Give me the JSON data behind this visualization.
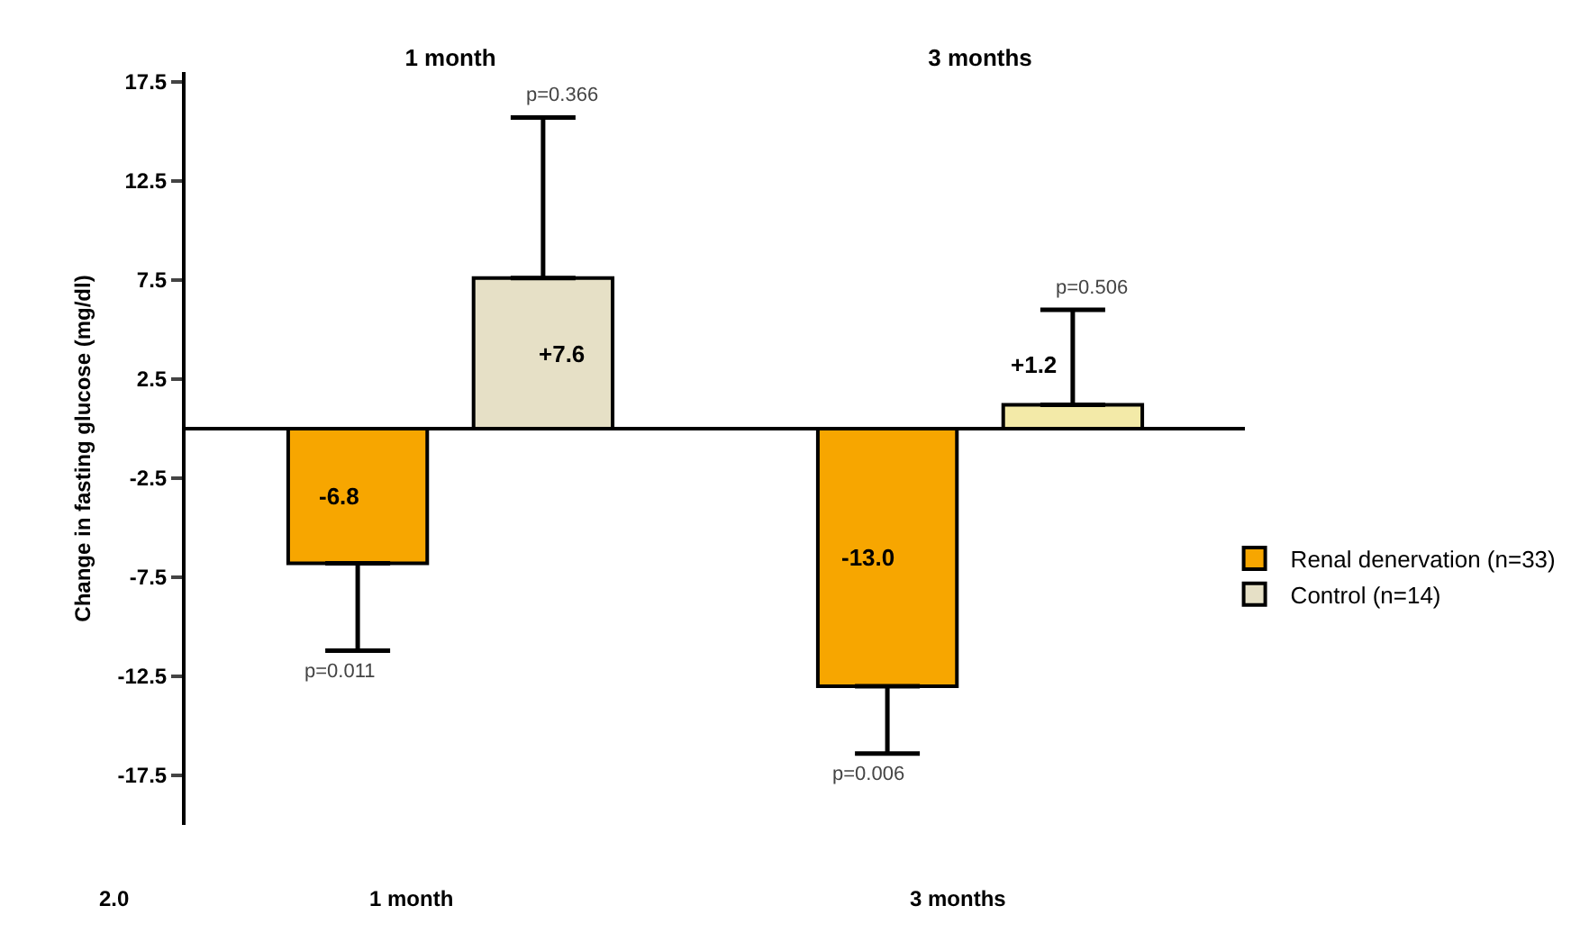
{
  "chart_data": [
    {
      "type": "bar",
      "ylabel": "Change in fasting glucose (mg/dl)",
      "categories": [
        "1 month",
        "3 months"
      ],
      "series": [
        {
          "name": "Renal denervation (n=33)",
          "color": "#f7a600",
          "values": [
            -6.8,
            -13.0
          ],
          "value_labels": [
            "-6.8",
            "-13.0"
          ],
          "errors": [
            [
              -11.2,
              -6.8
            ],
            [
              -16.4,
              -13.0
            ]
          ]
        },
        {
          "name": "Control (n=14)",
          "color": "#e6e0c6",
          "colors": [
            null,
            "#f3eaa8"
          ],
          "values": [
            7.6,
            1.2
          ],
          "value_labels": [
            "+7.6",
            "+1.2"
          ],
          "errors": [
            [
              7.6,
              15.7
            ],
            [
              1.2,
              6.0
            ]
          ]
        }
      ],
      "ylim": [
        -20,
        18
      ],
      "yticks": [
        -17.5,
        -12.5,
        -7.5,
        -2.5,
        2.5,
        7.5,
        12.5,
        17.5
      ],
      "grid": false,
      "legend": "right",
      "annotations": [
        "p=0.011",
        "p=0.366",
        "p=0.006",
        "p=0.506"
      ]
    },
    {
      "type": "other",
      "annotations": [
        "2.0",
        "1 month",
        "3 months"
      ]
    }
  ]
}
